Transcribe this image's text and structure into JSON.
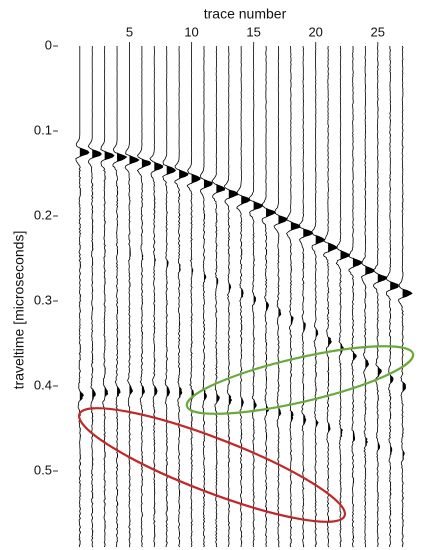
{
  "chart_data": {
    "type": "wiggle",
    "x_label": "trace number",
    "y_label": "traveltime [microseconds]",
    "x": [
      1,
      2,
      3,
      4,
      5,
      6,
      7,
      8,
      9,
      10,
      11,
      12,
      13,
      14,
      15,
      16,
      17,
      18,
      19,
      20,
      21,
      22,
      23,
      24,
      25,
      26,
      27
    ],
    "first_arrival": [
      0.115,
      0.117,
      0.119,
      0.121,
      0.124,
      0.128,
      0.132,
      0.136,
      0.141,
      0.146,
      0.152,
      0.158,
      0.164,
      0.171,
      0.178,
      0.186,
      0.194,
      0.202,
      0.21,
      0.218,
      0.227,
      0.236,
      0.245,
      0.254,
      0.263,
      0.272,
      0.281
    ],
    "color": "#000000",
    "xlim": [
      -1,
      28
    ],
    "ylim": [
      0,
      0.59
    ],
    "xticks": [
      5,
      10,
      15,
      20,
      25
    ],
    "yticks": [
      0,
      0.1,
      0.2,
      0.3,
      0.4,
      0.5
    ]
  }
}
